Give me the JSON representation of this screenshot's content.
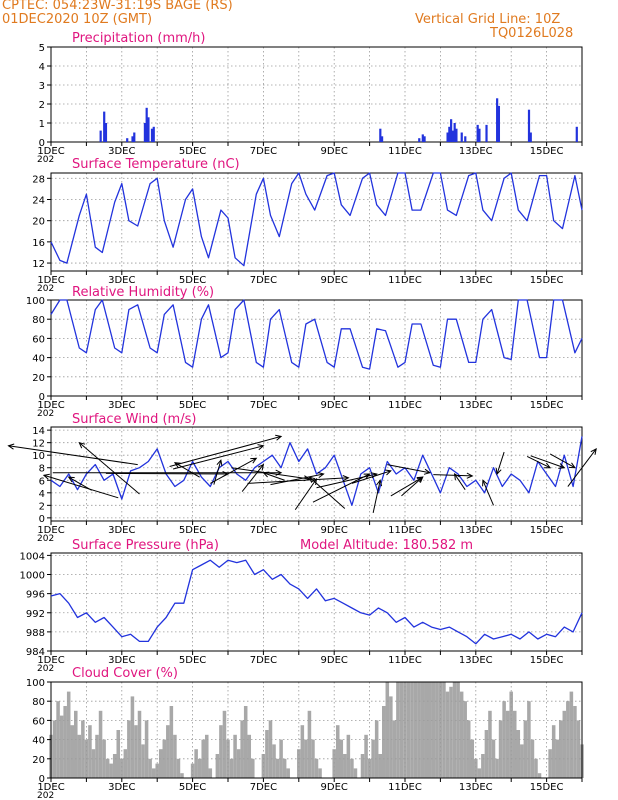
{
  "header": {
    "station": "CPTEC:   054:23W-31:19S   BAGE (RS)",
    "date": "01DEC2020 10Z (GMT)",
    "grid_note": "Vertical Grid Line: 10Z",
    "code": "TQ0126L028",
    "model_altitude": "Model Altitude: 180.582 m"
  },
  "colors": {
    "header": "#e07a1f",
    "title": "#e0157f",
    "line": "#2233dd",
    "bars": "#2233dd",
    "cloud": "#a8a8a8",
    "grid": "#9a9a9a"
  },
  "x_axis": {
    "ticks": [
      "1DEC",
      "3DEC",
      "5DEC",
      "7DEC",
      "9DEC",
      "11DEC",
      "13DEC",
      "15DEC"
    ],
    "year_fragment": "202"
  },
  "chart_data": [
    {
      "type": "bar",
      "title": "Precipitation (mm/h)",
      "ylim": [
        0,
        5
      ],
      "yticks": [
        0,
        1,
        2,
        3,
        4,
        5
      ],
      "bars": [
        [
          2.4,
          0.6
        ],
        [
          2.5,
          1.6
        ],
        [
          2.55,
          1.0
        ],
        [
          3.15,
          0.2
        ],
        [
          3.3,
          0.3
        ],
        [
          3.35,
          0.5
        ],
        [
          3.65,
          1.0
        ],
        [
          3.7,
          1.8
        ],
        [
          3.75,
          1.3
        ],
        [
          3.85,
          0.7
        ],
        [
          3.9,
          0.8
        ],
        [
          10.3,
          0.7
        ],
        [
          10.35,
          0.3
        ],
        [
          11.4,
          0.2
        ],
        [
          11.5,
          0.4
        ],
        [
          11.55,
          0.3
        ],
        [
          12.2,
          0.5
        ],
        [
          12.25,
          0.8
        ],
        [
          12.3,
          1.2
        ],
        [
          12.35,
          0.6
        ],
        [
          12.4,
          1.0
        ],
        [
          12.45,
          0.7
        ],
        [
          12.6,
          0.5
        ],
        [
          12.7,
          0.3
        ],
        [
          13.05,
          0.9
        ],
        [
          13.1,
          0.7
        ],
        [
          13.3,
          0.9
        ],
        [
          13.6,
          2.3
        ],
        [
          13.65,
          1.9
        ],
        [
          14.5,
          1.7
        ],
        [
          14.55,
          0.5
        ],
        [
          15.85,
          0.8
        ]
      ]
    },
    {
      "type": "line",
      "title": "Surface Temperature (nC)",
      "ylim": [
        10.5,
        29
      ],
      "yticks": [
        12,
        16,
        20,
        24,
        28
      ],
      "x": [
        1.0,
        1.25,
        1.45,
        1.8,
        2.0,
        2.25,
        2.45,
        2.8,
        3.0,
        3.2,
        3.45,
        3.8,
        4.0,
        4.2,
        4.45,
        4.8,
        5.0,
        5.25,
        5.45,
        5.8,
        6.0,
        6.2,
        6.45,
        6.8,
        7.0,
        7.2,
        7.45,
        7.8,
        8.0,
        8.2,
        8.45,
        8.8,
        9.0,
        9.2,
        9.45,
        9.8,
        10.0,
        10.2,
        10.45,
        10.8,
        11.0,
        11.2,
        11.45,
        11.8,
        12.0,
        12.2,
        12.45,
        12.8,
        13.0,
        13.2,
        13.45,
        13.8,
        14.0,
        14.2,
        14.45,
        14.8,
        15.0,
        15.2,
        15.45,
        15.8,
        16.0
      ],
      "y": [
        16,
        12.5,
        12,
        21,
        25,
        15,
        14,
        23.5,
        27,
        20,
        19,
        27,
        28,
        20,
        15,
        24,
        26,
        17,
        13,
        22,
        20.5,
        13,
        11.5,
        25,
        28,
        21,
        17,
        27,
        29,
        25,
        22,
        28.5,
        29,
        23,
        21,
        28,
        29,
        23,
        21,
        29,
        29,
        22,
        22,
        29,
        29,
        22,
        21,
        28.5,
        29,
        22,
        20,
        28,
        29,
        22,
        20,
        28.5,
        28.5,
        20,
        18.5,
        28.5,
        22
      ]
    },
    {
      "type": "line",
      "title": "Relative Humidity (%)",
      "ylim": [
        0,
        100
      ],
      "yticks": [
        0,
        20,
        40,
        60,
        80,
        100
      ],
      "x": [
        1.0,
        1.25,
        1.45,
        1.8,
        2.0,
        2.25,
        2.45,
        2.8,
        3.0,
        3.2,
        3.45,
        3.8,
        4.0,
        4.2,
        4.45,
        4.8,
        5.0,
        5.25,
        5.45,
        5.8,
        6.0,
        6.2,
        6.45,
        6.8,
        7.0,
        7.2,
        7.45,
        7.8,
        8.0,
        8.2,
        8.45,
        8.8,
        9.0,
        9.2,
        9.45,
        9.8,
        10.0,
        10.2,
        10.45,
        10.8,
        11.0,
        11.2,
        11.45,
        11.8,
        12.0,
        12.2,
        12.45,
        12.8,
        13.0,
        13.2,
        13.45,
        13.8,
        14.0,
        14.2,
        14.45,
        14.8,
        15.0,
        15.2,
        15.45,
        15.8,
        16.0
      ],
      "y": [
        85,
        100,
        100,
        50,
        45,
        90,
        100,
        50,
        45,
        90,
        95,
        50,
        45,
        85,
        95,
        35,
        30,
        80,
        95,
        40,
        45,
        90,
        100,
        35,
        30,
        80,
        90,
        35,
        30,
        75,
        80,
        35,
        30,
        70,
        70,
        30,
        28,
        70,
        68,
        30,
        35,
        75,
        75,
        32,
        30,
        80,
        80,
        35,
        35,
        80,
        90,
        40,
        38,
        100,
        100,
        40,
        40,
        100,
        100,
        45,
        60
      ]
    },
    {
      "type": "line",
      "title": "Surface Wind (m/s)",
      "ylim": [
        -0.5,
        14.5
      ],
      "yticks": [
        0,
        2,
        4,
        6,
        8,
        10,
        12,
        14
      ],
      "x": [
        1.0,
        1.25,
        1.5,
        1.75,
        2.0,
        2.25,
        2.5,
        2.75,
        3.0,
        3.25,
        3.5,
        3.75,
        4.0,
        4.25,
        4.5,
        4.75,
        5.0,
        5.25,
        5.5,
        5.75,
        6.0,
        6.25,
        6.5,
        6.75,
        7.0,
        7.25,
        7.5,
        7.75,
        8.0,
        8.25,
        8.5,
        8.75,
        9.0,
        9.25,
        9.5,
        9.75,
        10.0,
        10.25,
        10.5,
        10.75,
        11.0,
        11.25,
        11.5,
        11.75,
        12.0,
        12.25,
        12.5,
        12.75,
        13.0,
        13.25,
        13.5,
        13.75,
        14.0,
        14.25,
        14.5,
        14.75,
        15.0,
        15.25,
        15.5,
        15.75,
        16.0
      ],
      "y": [
        6,
        5,
        7,
        4.5,
        7,
        8.5,
        6,
        7,
        3,
        7.5,
        8,
        9,
        11,
        7,
        5,
        6,
        9,
        6.5,
        5,
        8,
        9,
        7,
        6,
        8,
        9,
        10,
        8,
        12,
        9,
        11,
        7,
        8,
        10,
        6,
        2,
        7,
        8,
        4,
        9,
        7,
        8,
        6,
        10,
        7,
        4,
        8,
        7,
        5,
        6,
        4,
        8,
        5,
        7,
        6,
        4,
        9,
        7,
        5,
        10,
        5,
        13
      ]
    },
    {
      "type": "line",
      "title": "Surface Pressure (hPa)",
      "ylim": [
        984,
        1004.5
      ],
      "yticks": [
        984,
        988,
        992,
        996,
        1000,
        1004
      ],
      "x": [
        1.0,
        1.25,
        1.5,
        1.75,
        2.0,
        2.25,
        2.5,
        2.75,
        3.0,
        3.25,
        3.5,
        3.75,
        4.0,
        4.25,
        4.5,
        4.75,
        5.0,
        5.25,
        5.5,
        5.75,
        6.0,
        6.25,
        6.5,
        6.75,
        7.0,
        7.25,
        7.5,
        7.75,
        8.0,
        8.25,
        8.5,
        8.75,
        9.0,
        9.25,
        9.5,
        9.75,
        10.0,
        10.25,
        10.5,
        10.75,
        11.0,
        11.25,
        11.5,
        11.75,
        12.0,
        12.25,
        12.5,
        12.75,
        13.0,
        13.25,
        13.5,
        13.75,
        14.0,
        14.25,
        14.5,
        14.75,
        15.0,
        15.25,
        15.5,
        15.75,
        16.0
      ],
      "y": [
        995.5,
        996,
        994,
        991,
        992,
        990,
        991,
        989,
        987,
        987.5,
        986,
        986,
        989,
        991,
        994,
        994,
        1001,
        1002,
        1003,
        1001.5,
        1003,
        1002.5,
        1003,
        1000,
        1001,
        999,
        1000,
        998,
        997,
        995,
        997,
        994.5,
        995,
        994,
        993,
        992,
        991.5,
        993,
        992,
        990,
        991,
        989,
        990,
        989,
        988.5,
        989,
        988,
        987,
        985.5,
        987.5,
        986.5,
        987,
        987.5,
        986.5,
        988,
        986.5,
        987.5,
        987,
        989,
        988,
        992
      ]
    },
    {
      "type": "bar",
      "title": "Cloud Cover (%)",
      "ylim": [
        0,
        100
      ],
      "yticks": [
        0,
        20,
        40,
        60,
        80,
        100
      ],
      "bars": [
        [
          1.0,
          45
        ],
        [
          1.1,
          60
        ],
        [
          1.2,
          80
        ],
        [
          1.3,
          65
        ],
        [
          1.4,
          75
        ],
        [
          1.5,
          90
        ],
        [
          1.6,
          55
        ],
        [
          1.7,
          70
        ],
        [
          1.8,
          45
        ],
        [
          1.9,
          60
        ],
        [
          2.0,
          40
        ],
        [
          2.1,
          55
        ],
        [
          2.2,
          30
        ],
        [
          2.3,
          45
        ],
        [
          2.4,
          70
        ],
        [
          2.5,
          40
        ],
        [
          2.6,
          20
        ],
        [
          2.7,
          15
        ],
        [
          2.8,
          25
        ],
        [
          2.9,
          50
        ],
        [
          3.0,
          20
        ],
        [
          3.1,
          30
        ],
        [
          3.2,
          60
        ],
        [
          3.3,
          85
        ],
        [
          3.4,
          55
        ],
        [
          3.5,
          70
        ],
        [
          3.6,
          35
        ],
        [
          3.7,
          60
        ],
        [
          3.8,
          20
        ],
        [
          3.9,
          10
        ],
        [
          4.0,
          15
        ],
        [
          4.1,
          30
        ],
        [
          4.2,
          40
        ],
        [
          4.3,
          55
        ],
        [
          4.4,
          75
        ],
        [
          4.5,
          45
        ],
        [
          4.6,
          20
        ],
        [
          4.7,
          5
        ],
        [
          4.8,
          0
        ],
        [
          4.9,
          0
        ],
        [
          5.0,
          15
        ],
        [
          5.1,
          30
        ],
        [
          5.2,
          20
        ],
        [
          5.3,
          40
        ],
        [
          5.4,
          45
        ],
        [
          5.5,
          10
        ],
        [
          5.6,
          0
        ],
        [
          5.7,
          25
        ],
        [
          5.8,
          55
        ],
        [
          5.9,
          70
        ],
        [
          6.0,
          40
        ],
        [
          6.1,
          20
        ],
        [
          6.2,
          45
        ],
        [
          6.3,
          30
        ],
        [
          6.4,
          60
        ],
        [
          6.5,
          75
        ],
        [
          6.6,
          45
        ],
        [
          6.7,
          20
        ],
        [
          6.8,
          0
        ],
        [
          6.9,
          0
        ],
        [
          7.0,
          25
        ],
        [
          7.1,
          50
        ],
        [
          7.2,
          60
        ],
        [
          7.3,
          35
        ],
        [
          7.4,
          20
        ],
        [
          7.5,
          40
        ],
        [
          7.6,
          20
        ],
        [
          7.7,
          10
        ],
        [
          7.8,
          0
        ],
        [
          7.9,
          0
        ],
        [
          8.0,
          30
        ],
        [
          8.1,
          55
        ],
        [
          8.2,
          40
        ],
        [
          8.3,
          70
        ],
        [
          8.4,
          40
        ],
        [
          8.5,
          20
        ],
        [
          8.6,
          10
        ],
        [
          8.7,
          0
        ],
        [
          8.8,
          0
        ],
        [
          8.9,
          0
        ],
        [
          9.0,
          30
        ],
        [
          9.1,
          55
        ],
        [
          9.2,
          40
        ],
        [
          9.3,
          25
        ],
        [
          9.4,
          45
        ],
        [
          9.5,
          20
        ],
        [
          9.6,
          10
        ],
        [
          9.7,
          0
        ],
        [
          9.8,
          25
        ],
        [
          9.9,
          45
        ],
        [
          10.0,
          20
        ],
        [
          10.1,
          40
        ],
        [
          10.2,
          60
        ],
        [
          10.3,
          25
        ],
        [
          10.4,
          75
        ],
        [
          10.5,
          100
        ],
        [
          10.6,
          85
        ],
        [
          10.7,
          60
        ],
        [
          10.8,
          100
        ],
        [
          10.9,
          100
        ],
        [
          11.0,
          100
        ],
        [
          11.1,
          100
        ],
        [
          11.2,
          100
        ],
        [
          11.3,
          100
        ],
        [
          11.4,
          100
        ],
        [
          11.5,
          100
        ],
        [
          11.6,
          100
        ],
        [
          11.7,
          100
        ],
        [
          11.8,
          100
        ],
        [
          11.9,
          100
        ],
        [
          12.0,
          100
        ],
        [
          12.1,
          100
        ],
        [
          12.2,
          90
        ],
        [
          12.3,
          95
        ],
        [
          12.4,
          100
        ],
        [
          12.5,
          100
        ],
        [
          12.6,
          90
        ],
        [
          12.7,
          80
        ],
        [
          12.8,
          60
        ],
        [
          12.9,
          40
        ],
        [
          13.0,
          20
        ],
        [
          13.1,
          10
        ],
        [
          13.2,
          25
        ],
        [
          13.3,
          50
        ],
        [
          13.4,
          70
        ],
        [
          13.5,
          40
        ],
        [
          13.6,
          20
        ],
        [
          13.7,
          60
        ],
        [
          13.8,
          80
        ],
        [
          13.9,
          70
        ],
        [
          14.0,
          90
        ],
        [
          14.1,
          70
        ],
        [
          14.2,
          50
        ],
        [
          14.3,
          35
        ],
        [
          14.4,
          60
        ],
        [
          14.5,
          80
        ],
        [
          14.6,
          40
        ],
        [
          14.7,
          20
        ],
        [
          14.8,
          5
        ],
        [
          14.9,
          0
        ],
        [
          15.0,
          0
        ],
        [
          15.1,
          30
        ],
        [
          15.2,
          55
        ],
        [
          15.3,
          40
        ],
        [
          15.4,
          60
        ],
        [
          15.5,
          70
        ],
        [
          15.6,
          80
        ],
        [
          15.7,
          90
        ],
        [
          15.8,
          75
        ],
        [
          15.9,
          60
        ],
        [
          16.0,
          35
        ]
      ]
    }
  ],
  "wind_arrows": [
    [
      1.05,
      7.2,
      7.5,
      7.2
    ],
    [
      2.15,
      4.4,
      1.5,
      6.5
    ],
    [
      2.55,
      7.1,
      6.0,
      7.0
    ],
    [
      2.9,
      3.2,
      0.8,
      6.8
    ],
    [
      3.45,
      8.5,
      -0.2,
      11.5
    ],
    [
      3.5,
      3.8,
      1.8,
      12.0
    ],
    [
      4.35,
      8.2,
      7.5,
      13.0
    ],
    [
      4.45,
      7.8,
      7.0,
      11.5
    ],
    [
      5.2,
      6.5,
      4.5,
      8.8
    ],
    [
      5.5,
      5.5,
      6.8,
      9.5
    ],
    [
      5.6,
      5.3,
      5.8,
      9.2
    ],
    [
      6.1,
      8.0,
      8.3,
      6.2
    ],
    [
      6.4,
      4.2,
      7.0,
      8.5
    ],
    [
      6.55,
      5.5,
      9.4,
      6.4
    ],
    [
      7.2,
      5.3,
      8.7,
      7.0
    ],
    [
      7.6,
      6.0,
      7.0,
      7.2
    ],
    [
      7.9,
      1.3,
      8.5,
      6.2
    ],
    [
      8.5,
      4.8,
      10.2,
      7.0
    ],
    [
      8.4,
      2.5,
      10.0,
      7.0
    ],
    [
      9.3,
      1.5,
      8.3,
      6.5
    ],
    [
      9.5,
      5.5,
      10.6,
      7.5
    ],
    [
      10.5,
      8.5,
      11.7,
      7.2
    ],
    [
      10.6,
      3.5,
      11.5,
      6.5
    ],
    [
      10.1,
      0.8,
      10.3,
      6.0
    ],
    [
      10.9,
      3.5,
      11.5,
      6.5
    ],
    [
      11.8,
      6.9,
      12.9,
      6.7
    ],
    [
      12.7,
      4.5,
      12.4,
      7.0
    ],
    [
      13.5,
      2.0,
      13.2,
      6.0
    ],
    [
      13.8,
      10.5,
      13.6,
      7.0
    ],
    [
      14.45,
      9.8,
      15.1,
      8.0
    ],
    [
      14.55,
      9.9,
      15.5,
      8.0
    ],
    [
      15.1,
      10.2,
      15.8,
      8.0
    ],
    [
      15.6,
      5.0,
      16.4,
      11.0
    ]
  ]
}
